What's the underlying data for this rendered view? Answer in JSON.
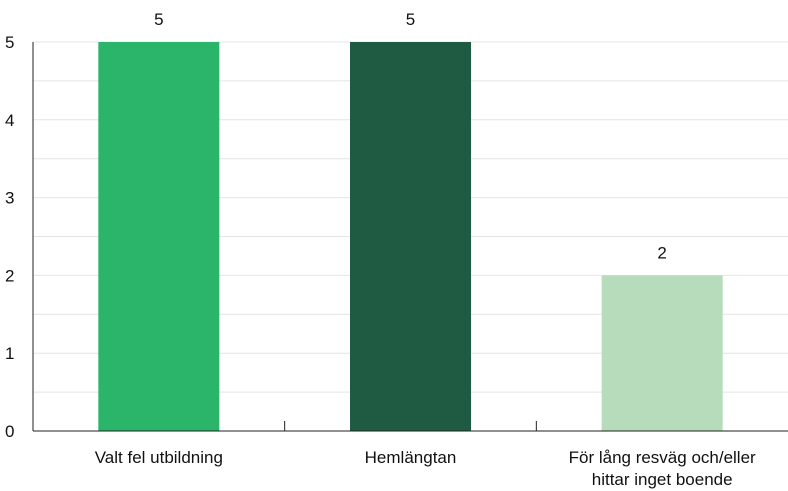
{
  "chart_data": {
    "type": "bar",
    "categories": [
      [
        "Valt fel utbildning"
      ],
      [
        "Hemlängtan"
      ],
      [
        "För lång resväg och/eller",
        "hittar inget boende"
      ]
    ],
    "values": [
      5,
      5,
      2
    ],
    "colors": [
      "#2bb56b",
      "#1f5b43",
      "#b6dcbc"
    ],
    "ylim": [
      0,
      5
    ],
    "yticks": [
      0,
      1,
      2,
      3,
      4,
      5
    ],
    "grid": true,
    "data_labels": true
  }
}
